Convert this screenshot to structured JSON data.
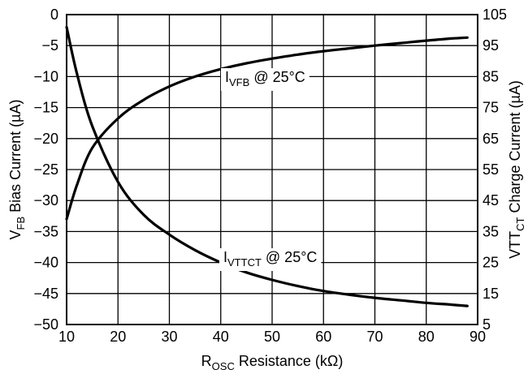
{
  "chart_data": {
    "type": "line",
    "xlabel": {
      "main": "R",
      "sub": "OSC",
      "rest": " Resistance (kΩ)"
    },
    "ylabel_left": {
      "main": "V",
      "sub": "FB",
      "rest": " Bias Current (µA)"
    },
    "ylabel_right": {
      "main": "VTT",
      "sub": "CT",
      "rest": " Charge Current (µA)"
    },
    "xlim": [
      10,
      90
    ],
    "ylim_left": [
      -50,
      0
    ],
    "ylim_right": [
      5,
      105
    ],
    "x_ticks": [
      "10",
      "20",
      "30",
      "40",
      "50",
      "60",
      "70",
      "80",
      "90"
    ],
    "y_left_ticks": [
      "0",
      "-5",
      "-10",
      "-15",
      "-20",
      "-25",
      "-30",
      "-35",
      "-40",
      "-45",
      "-50"
    ],
    "y_right_ticks": [
      "105",
      "95",
      "85",
      "75",
      "65",
      "55",
      "45",
      "35",
      "25",
      "15",
      "5"
    ],
    "grid": true,
    "series": [
      {
        "name": {
          "main": "I",
          "sub": "VFB",
          "rest": " @ 25°C"
        },
        "axis": "right",
        "x": [
          10,
          12,
          15,
          20,
          25,
          30,
          35,
          40,
          45,
          50,
          55,
          60,
          65,
          70,
          75,
          80,
          85,
          88
        ],
        "y": [
          39,
          50,
          62,
          71.5,
          77.5,
          81.8,
          85,
          87.4,
          89.3,
          90.8,
          92.1,
          93.2,
          94.1,
          95,
          95.8,
          96.6,
          97.3,
          97.6
        ]
      },
      {
        "name": {
          "main": "I",
          "sub": "VTTCT",
          "rest": " @ 25°C"
        },
        "axis": "left",
        "x": [
          10,
          12,
          15,
          20,
          25,
          30,
          35,
          40,
          45,
          50,
          55,
          60,
          65,
          70,
          75,
          80,
          85,
          88
        ],
        "y": [
          -2,
          -9.5,
          -18,
          -27,
          -32.3,
          -35.5,
          -38,
          -40,
          -41.6,
          -42.8,
          -43.8,
          -44.6,
          -45.2,
          -45.7,
          -46.1,
          -46.5,
          -46.8,
          -47
        ]
      }
    ]
  }
}
